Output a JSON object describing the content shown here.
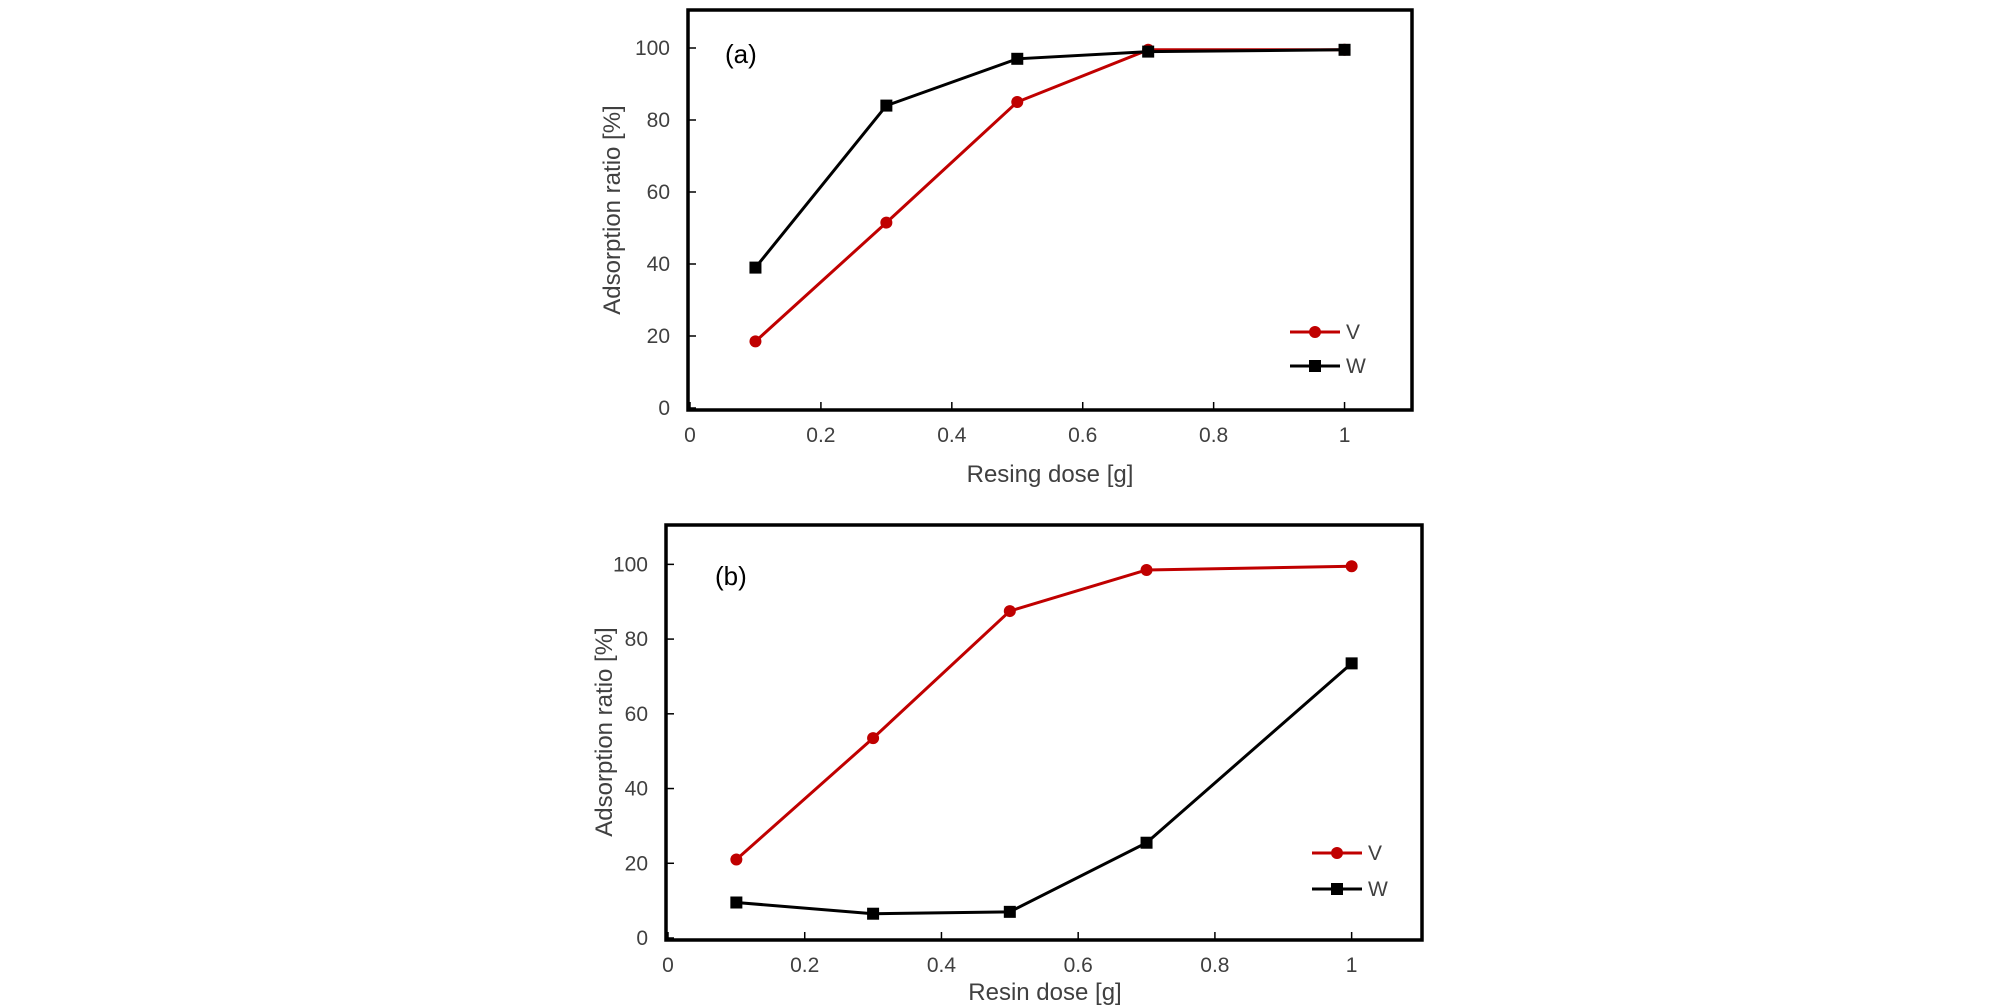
{
  "chart_data": [
    {
      "type": "line",
      "panel_label": "(a)",
      "title": "",
      "xlabel": "Resing dose [g]",
      "ylabel": "Adsorption ratio [%]",
      "xlim": [
        0,
        1.1
      ],
      "ylim": [
        0,
        110
      ],
      "xticks": [
        0,
        0.2,
        0.4,
        0.6,
        0.8,
        1
      ],
      "xtick_labels": [
        "0",
        "0.2",
        "0.4",
        "0.6",
        "0.8",
        "1"
      ],
      "yticks": [
        0,
        20,
        40,
        60,
        80,
        100
      ],
      "ytick_labels": [
        "0",
        "20",
        "40",
        "60",
        "80",
        "100"
      ],
      "legend_position": "bottom-right",
      "series": [
        {
          "name": "V",
          "color": "#c00000",
          "marker": "circle",
          "x": [
            0.1,
            0.3,
            0.5,
            0.7,
            1.0
          ],
          "y": [
            18.5,
            51.5,
            85,
            99.5,
            99.5
          ]
        },
        {
          "name": "W",
          "color": "#000000",
          "marker": "square",
          "x": [
            0.1,
            0.3,
            0.5,
            0.7,
            1.0
          ],
          "y": [
            39,
            84,
            97,
            99,
            99.5
          ]
        }
      ]
    },
    {
      "type": "line",
      "panel_label": "(b)",
      "title": "",
      "xlabel": "Resin dose [g]",
      "ylabel": "Adsorption ratio [%]",
      "xlim": [
        0,
        1.1
      ],
      "ylim": [
        0,
        110
      ],
      "xticks": [
        0,
        0.2,
        0.4,
        0.6,
        0.8,
        1
      ],
      "xtick_labels": [
        "0",
        "0.2",
        "0.4",
        "0.6",
        "0.8",
        "1"
      ],
      "yticks": [
        0,
        20,
        40,
        60,
        80,
        100
      ],
      "ytick_labels": [
        "0",
        "20",
        "40",
        "60",
        "80",
        "100"
      ],
      "legend_position": "bottom-right",
      "series": [
        {
          "name": "V",
          "color": "#c00000",
          "marker": "circle",
          "x": [
            0.1,
            0.3,
            0.5,
            0.7,
            1.0
          ],
          "y": [
            21,
            53.5,
            87.5,
            98.5,
            99.5
          ]
        },
        {
          "name": "W",
          "color": "#000000",
          "marker": "square",
          "x": [
            0.1,
            0.3,
            0.5,
            0.7,
            1.0
          ],
          "y": [
            9.5,
            6.5,
            7,
            25.5,
            73.5
          ]
        }
      ]
    }
  ]
}
